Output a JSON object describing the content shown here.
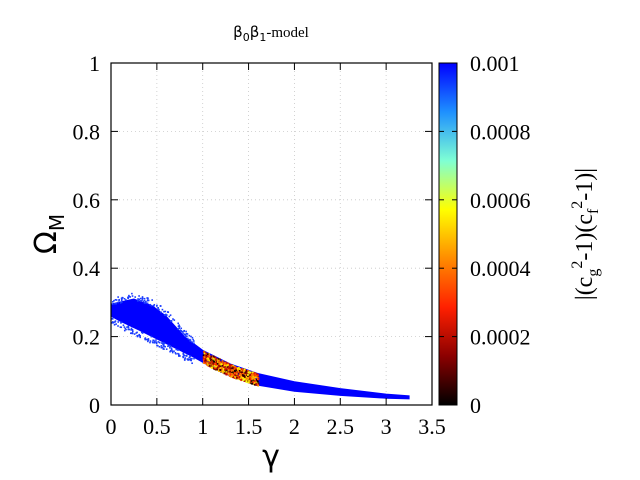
{
  "chart_data": {
    "type": "scatter",
    "title": "β0β1-model",
    "title_parts": {
      "b0": "β",
      "sub0": "0",
      "b1": "β",
      "sub1": "1",
      "rest": "-model"
    },
    "xlabel": "γ",
    "ylabel": "ΩM",
    "ylabel_parts": {
      "main": "Ω",
      "sub": "M"
    },
    "xlim": [
      0,
      3.5
    ],
    "ylim": [
      0,
      1
    ],
    "x_ticks": [
      "0",
      "0.5",
      "1",
      "1.5",
      "2",
      "2.5",
      "3",
      "3.5"
    ],
    "y_ticks": [
      "0",
      "0.2",
      "0.4",
      "0.6",
      "0.8",
      "1"
    ],
    "grid": true,
    "colorbar": {
      "label": "|(cg2-1)(cf2-1)|",
      "label_parts": {
        "p1": "|(c",
        "sub1": "g",
        "sup1": "2",
        "p2": "-1)(c",
        "sub2": "f",
        "sup2": "2",
        "p3": "-1)|"
      },
      "range": [
        0,
        0.001
      ],
      "ticks": [
        "0",
        "0.0002",
        "0.0004",
        "0.0006",
        "0.0008",
        "0.001"
      ],
      "colormap": [
        "#000000",
        "#8b0000",
        "#ff2000",
        "#ff8c00",
        "#ffff00",
        "#7fffd4",
        "#1e90ff",
        "#0000ff"
      ]
    },
    "region": {
      "upper": [
        [
          0.0,
          0.295
        ],
        [
          0.25,
          0.31
        ],
        [
          0.45,
          0.29
        ],
        [
          0.6,
          0.26
        ],
        [
          0.8,
          0.2
        ],
        [
          1.0,
          0.16
        ],
        [
          1.3,
          0.12
        ],
        [
          1.6,
          0.092
        ],
        [
          2.0,
          0.068
        ],
        [
          2.5,
          0.048
        ],
        [
          3.0,
          0.032
        ],
        [
          3.25,
          0.027
        ]
      ],
      "lower": [
        [
          3.25,
          0.018
        ],
        [
          3.0,
          0.02
        ],
        [
          2.5,
          0.028
        ],
        [
          2.0,
          0.04
        ],
        [
          1.6,
          0.058
        ],
        [
          1.3,
          0.085
        ],
        [
          1.1,
          0.11
        ],
        [
          0.9,
          0.14
        ],
        [
          0.6,
          0.18
        ],
        [
          0.3,
          0.22
        ],
        [
          0.1,
          0.245
        ],
        [
          0.0,
          0.26
        ]
      ],
      "value": 0.001
    },
    "low_value_band": {
      "x": [
        1.0,
        1.6
      ],
      "y": [
        0.07,
        0.14
      ],
      "value_range": [
        0,
        0.0006
      ]
    }
  }
}
